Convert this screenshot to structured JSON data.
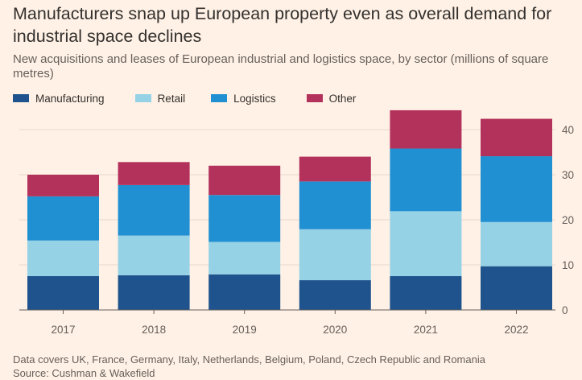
{
  "header": {
    "title": "Manufacturers snap up European property even as overall demand for industrial space declines",
    "subtitle": "New acquisitions and leases of European industrial and logistics space, by sector (millions of square metres)"
  },
  "footer": {
    "note": "Data covers UK, France, Germany, Italy, Netherlands, Belgium, Poland, Czech Republic and Romania",
    "source": "Source: Cushman & Wakefield"
  },
  "colors": {
    "background": "#FFF1E5",
    "manufacturing": "#1F538D",
    "retail": "#96D2E6",
    "logistics": "#2190D2",
    "other": "#B3325C",
    "gridline": "#E5D8CC",
    "axis": "#66605C"
  },
  "chart_data": {
    "type": "bar",
    "stacked": true,
    "title": "Manufacturers snap up European property even as overall demand for industrial space declines",
    "subtitle": "New acquisitions and leases of European industrial and logistics space, by sector (millions of square metres)",
    "xlabel": "",
    "ylabel": "",
    "ylim": [
      0,
      45
    ],
    "yticks": [
      0,
      10,
      20,
      30,
      40
    ],
    "y_axis_side": "right",
    "grid": true,
    "legend_position": "top-left",
    "categories": [
      "2017",
      "2018",
      "2019",
      "2020",
      "2021",
      "2022"
    ],
    "series": [
      {
        "name": "Manufacturing",
        "color": "#1F538D",
        "values": [
          7.5,
          7.7,
          7.9,
          6.6,
          7.5,
          9.7
        ]
      },
      {
        "name": "Retail",
        "color": "#96D2E6",
        "values": [
          7.9,
          8.8,
          7.2,
          11.3,
          14.4,
          9.8
        ]
      },
      {
        "name": "Logistics",
        "color": "#2190D2",
        "values": [
          9.8,
          11.2,
          10.4,
          10.6,
          13.9,
          14.6
        ]
      },
      {
        "name": "Other",
        "color": "#B3325C",
        "values": [
          4.8,
          5.1,
          6.5,
          5.5,
          8.5,
          8.3
        ]
      }
    ]
  }
}
